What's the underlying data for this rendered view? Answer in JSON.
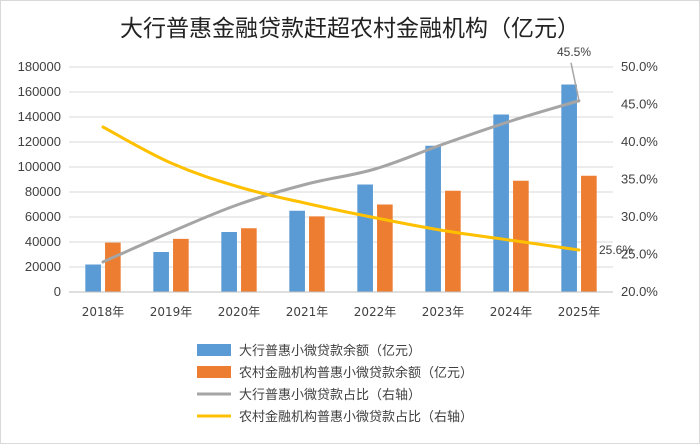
{
  "chart_data": {
    "type": "bar",
    "title": "大行普惠金融贷款赶超农村金融机构（亿元）",
    "categories": [
      "2018年",
      "2019年",
      "2020年",
      "2021年",
      "2022年",
      "2023年",
      "2024年",
      "2025年"
    ],
    "series": [
      {
        "name": "大行普惠小微贷款余额（亿元）",
        "type": "bar",
        "axis": "left",
        "color": "#5b9bd5",
        "values": [
          22000,
          32000,
          48000,
          65000,
          86000,
          117000,
          142000,
          166000
        ]
      },
      {
        "name": "农村金融机构普惠小微贷款余额（亿元）",
        "type": "bar",
        "axis": "left",
        "color": "#ed7d31",
        "values": [
          39500,
          42500,
          51000,
          60500,
          70000,
          81000,
          89000,
          93000
        ]
      },
      {
        "name": "大行普惠小微贷款占比（右轴）",
        "type": "line",
        "axis": "right",
        "color": "#a5a5a5",
        "values": [
          24.0,
          28.0,
          31.7,
          34.4,
          36.4,
          39.7,
          42.8,
          45.5
        ]
      },
      {
        "name": "农村金融机构普惠小微贷款占比（右轴）",
        "type": "line",
        "axis": "right",
        "color": "#ffc000",
        "values": [
          42.0,
          37.2,
          34.0,
          31.8,
          29.9,
          28.2,
          26.9,
          25.6
        ]
      }
    ],
    "y_left": {
      "min": 0,
      "max": 180000,
      "step": 20000,
      "ticks": [
        "0",
        "20000",
        "40000",
        "60000",
        "80000",
        "100000",
        "120000",
        "140000",
        "160000",
        "180000"
      ]
    },
    "y_right": {
      "min": 20,
      "max": 50,
      "step": 5,
      "ticks": [
        "20.0%",
        "25.0%",
        "30.0%",
        "35.0%",
        "40.0%",
        "45.0%",
        "50.0%"
      ]
    },
    "annotations": [
      {
        "series": 2,
        "index": 7,
        "text": "45.5%"
      },
      {
        "series": 3,
        "index": 7,
        "text": "25.6%"
      }
    ],
    "grid": true,
    "legend_position": "bottom"
  }
}
